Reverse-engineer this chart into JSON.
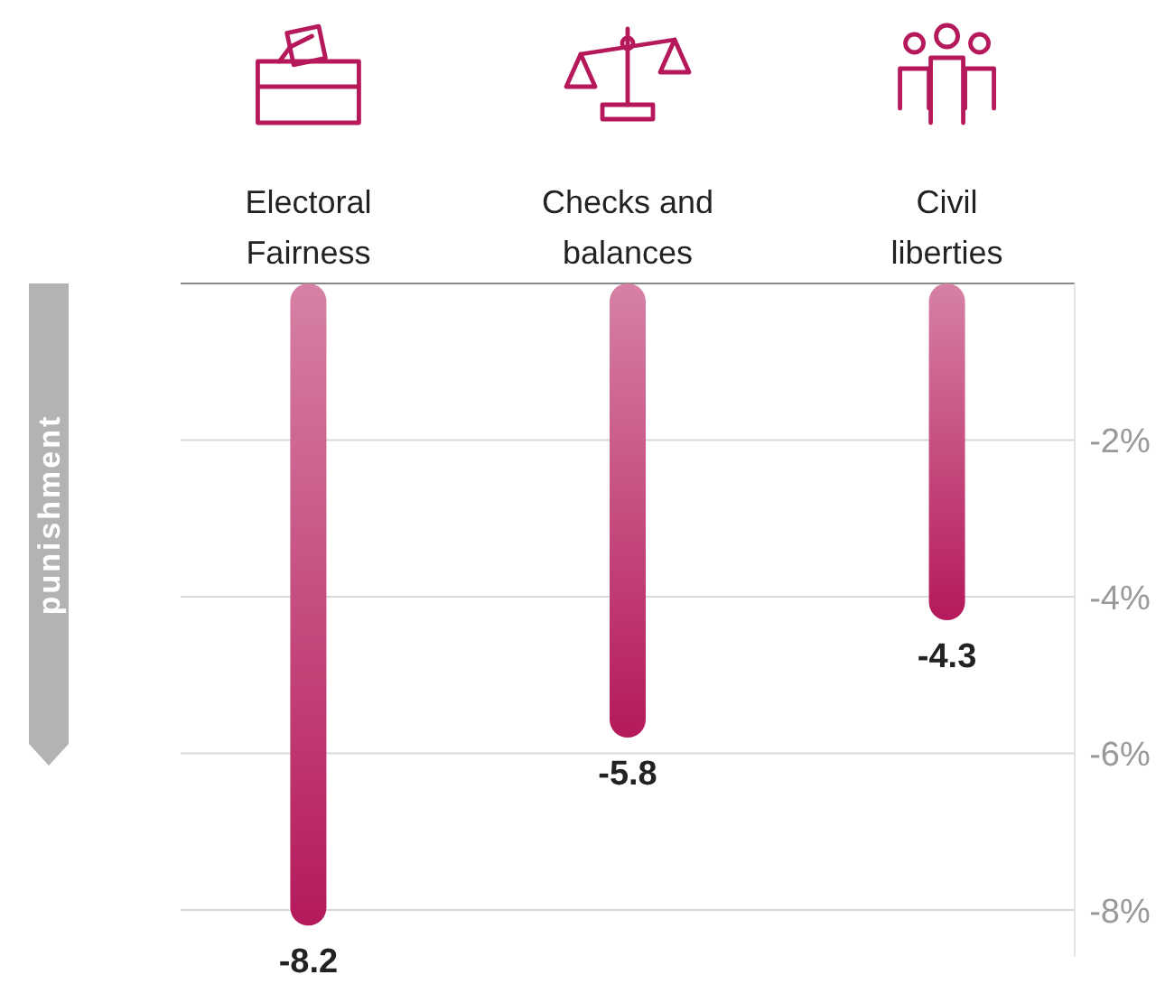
{
  "chart_data": {
    "type": "bar",
    "ylabel": "punishment",
    "categories": [
      "Electoral\nFairness",
      "Checks and\nbalances",
      "Civil\nliberties"
    ],
    "values": [
      -8.2,
      -5.8,
      -4.3
    ],
    "color": "#b5195b",
    "data_labels": true,
    "grid": "y",
    "ylim": [
      -8.6,
      0
    ],
    "yticks": [
      {
        "value": 0,
        "label": null
      },
      {
        "value": -2,
        "label": "-2%"
      },
      {
        "value": -4,
        "label": "-4%"
      },
      {
        "value": -6,
        "label": "-6%"
      },
      {
        "value": -8,
        "label": "-8%"
      }
    ]
  }
}
